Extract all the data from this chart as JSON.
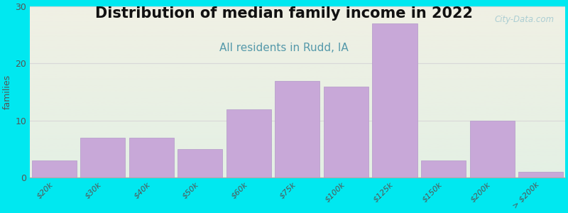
{
  "title": "Distribution of median family income in 2022",
  "subtitle": "All residents in Rudd, IA",
  "xlabel": "",
  "ylabel": "families",
  "categories": [
    "$20k",
    "$30k",
    "$40k",
    "$50k",
    "$60k",
    "$75k",
    "$100k",
    "$125k",
    "$150k",
    "$200k",
    "> $200k"
  ],
  "values": [
    3,
    7,
    7,
    5,
    12,
    17,
    16,
    27,
    3,
    10,
    1
  ],
  "bar_color": "#c8a8d8",
  "bar_edgecolor": "#b8a0cc",
  "ylim": [
    0,
    30
  ],
  "yticks": [
    0,
    10,
    20,
    30
  ],
  "background_outer": "#00e8f0",
  "background_plot_top": "#f0f0e4",
  "background_plot_bottom": "#e4f0e4",
  "title_fontsize": 15,
  "subtitle_fontsize": 11,
  "subtitle_color": "#5599aa",
  "watermark": "City-Data.com",
  "watermark_color": "#a0c8d0",
  "grid_color": "#d8d8d8",
  "tick_label_color": "#555555",
  "ylabel_color": "#555555"
}
